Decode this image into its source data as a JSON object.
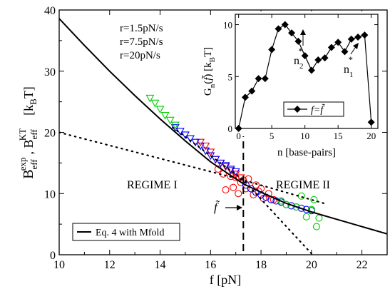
{
  "chart_data": [
    {
      "type": "scatter",
      "xlabel": "f [pN]",
      "ylabel": "B_eff^exp , B_eff^KT [k_BT]",
      "xlim": [
        10,
        23
      ],
      "ylim": [
        0,
        40
      ],
      "xticks": [
        "10",
        "12",
        "14",
        "16",
        "18",
        "20",
        "22"
      ],
      "yticks": [
        "0",
        "10",
        "20",
        "30",
        "40"
      ],
      "annotations": {
        "regime1": "REGIME I",
        "regime2": "REGIME II",
        "ftilde": "f̃",
        "legend_line": "Eq. 4 with Mfold"
      },
      "vline_x": 17.3,
      "series": [
        {
          "name": "r=1.5pN/s",
          "color": "#ff0000",
          "marker": "circle",
          "x": [
            16.3,
            16.5,
            16.6,
            16.8,
            16.9,
            17.0,
            17.1,
            17.2,
            17.3,
            17.4,
            17.5,
            17.7,
            17.8,
            17.9,
            18.0,
            18.1,
            18.3,
            18.5
          ],
          "y": [
            14.0,
            13.2,
            10.6,
            12.8,
            11.0,
            12.6,
            10.0,
            11.8,
            12.2,
            10.8,
            12.4,
            9.8,
            11.4,
            10.4,
            10.8,
            9.2,
            10.0,
            9.0
          ]
        },
        {
          "name": "r=1.5pN/s triangles",
          "color": "#ff0000",
          "marker": "triangle-down",
          "x": [
            15.6,
            15.8,
            16.0,
            16.2,
            16.4,
            16.6,
            16.8,
            17.0,
            17.2
          ],
          "y": [
            18.4,
            17.8,
            16.8,
            15.6,
            15.0,
            14.4,
            13.8,
            13.2,
            12.6
          ]
        },
        {
          "name": "r=7.5pN/s",
          "color": "#0000ff",
          "marker": "circle",
          "x": [
            17.4,
            17.6,
            17.8,
            18.0,
            18.2,
            18.4,
            18.6,
            18.8,
            19.0,
            19.2,
            19.4,
            19.6,
            19.8,
            20.0
          ],
          "y": [
            11.4,
            10.8,
            10.2,
            9.8,
            9.4,
            9.0,
            8.8,
            8.6,
            8.2,
            8.0,
            7.8,
            7.6,
            7.4,
            7.2
          ]
        },
        {
          "name": "r=7.5pN/s triangles",
          "color": "#0000ff",
          "marker": "triangle-down",
          "x": [
            14.6,
            14.8,
            15.0,
            15.2,
            15.4,
            15.6,
            15.8,
            16.0,
            16.2,
            16.4,
            16.6,
            16.8,
            17.0
          ],
          "y": [
            20.8,
            20.2,
            19.6,
            19.0,
            18.4,
            17.8,
            17.0,
            16.2,
            15.6,
            15.0,
            14.6,
            14.0,
            13.6
          ]
        },
        {
          "name": "r=20pN/s",
          "color": "#00cc00",
          "marker": "circle",
          "x": [
            18.8,
            19.0,
            19.4,
            19.6,
            19.8,
            20.0,
            20.1,
            20.2,
            20.3
          ],
          "y": [
            8.8,
            8.2,
            7.8,
            9.6,
            6.2,
            7.4,
            9.0,
            4.6,
            6.0
          ]
        },
        {
          "name": "r=20pN/s triangles",
          "color": "#00cc00",
          "marker": "triangle-down",
          "x": [
            13.6,
            13.8,
            14.0,
            14.2,
            14.4,
            14.6
          ],
          "y": [
            25.6,
            24.8,
            23.8,
            22.8,
            22.0,
            21.2
          ]
        },
        {
          "name": "Eq. 4 with Mfold",
          "color": "#000000",
          "marker": "line",
          "x": [
            10,
            11,
            12,
            13,
            14,
            15,
            16,
            17,
            17.3,
            18,
            19,
            20,
            21,
            22,
            23
          ],
          "y": [
            38.6,
            34.2,
            30.0,
            26.0,
            22.2,
            18.6,
            15.2,
            12.4,
            11.6,
            10.2,
            8.4,
            7.0,
            5.8,
            4.6,
            3.4
          ]
        },
        {
          "name": "dotted-regime1",
          "color": "#000000",
          "marker": "dotted",
          "x": [
            10,
            17.3,
            20.5
          ],
          "y": [
            20.0,
            12.2,
            8.4
          ]
        },
        {
          "name": "dotted-regime2",
          "color": "#000000",
          "marker": "dotted",
          "x": [
            14.5,
            17.3,
            20.0
          ],
          "y": [
            20.8,
            12.2,
            0.2
          ]
        }
      ],
      "legend_entries": [
        "r=1.5pN/s",
        "r=7.5pN/s",
        "r=20pN/s"
      ]
    },
    {
      "type": "line",
      "xlabel": "n [base-pairs]",
      "ylabel": "G_n(f̃) [k_BT]",
      "xlim": [
        -0.5,
        21
      ],
      "ylim": [
        0,
        11
      ],
      "xticks": [
        "0",
        "5",
        "10",
        "15",
        "20"
      ],
      "yticks": [
        "0",
        "5",
        "10"
      ],
      "legend": "f=f̃",
      "annotations": {
        "n2": "n",
        "n2_sub": "2",
        "n1": "n",
        "n1_sub": "1",
        "star": "*"
      },
      "x": [
        0,
        1,
        2,
        3,
        4,
        5,
        6,
        7,
        8,
        9,
        10,
        11,
        12,
        13,
        14,
        15,
        16,
        17,
        18,
        19,
        20
      ],
      "y": [
        0.0,
        3.0,
        3.6,
        4.8,
        4.8,
        7.6,
        9.6,
        10.0,
        9.2,
        8.4,
        7.0,
        5.6,
        6.6,
        6.8,
        7.8,
        8.3,
        7.4,
        8.6,
        8.8,
        9.0,
        0.6
      ]
    }
  ]
}
